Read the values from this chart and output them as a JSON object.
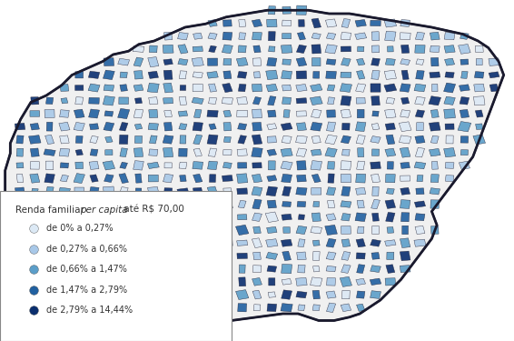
{
  "title": "",
  "background_color": "#ffffff",
  "legend_title": "Renda familiar per capita até R$ 70,00",
  "legend_title_normal": "Renda familiar ",
  "legend_title_italic": "per capita",
  "legend_title_end": " até R$ 70,00",
  "legend_items": [
    {
      "label": "de 0% a 0,27%",
      "color": "#dce9f5"
    },
    {
      "label": "de 0,27% a 0,66%",
      "color": "#a8c8e8"
    },
    {
      "label": "de 0,66% a 1,47%",
      "color": "#5b9ec9"
    },
    {
      "label": "de 1,47% a 2,79%",
      "color": "#2060a0"
    },
    {
      "label": "de 2,79% a 14,44%",
      "color": "#0a2e6e"
    }
  ],
  "map_colors": [
    "#dce9f5",
    "#a8c8e8",
    "#5b9ec9",
    "#2060a0",
    "#0a2e6e"
  ],
  "border_color": "#1a1a2e",
  "figsize": [
    5.66,
    3.75
  ],
  "dpi": 100
}
